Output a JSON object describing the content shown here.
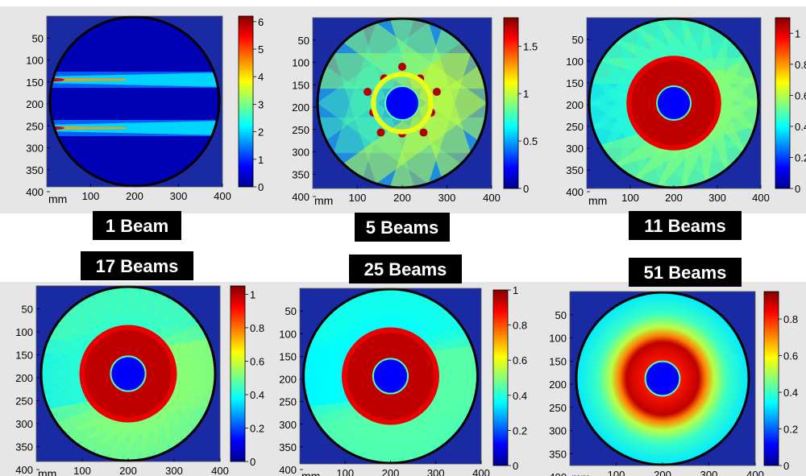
{
  "chart_data": [
    {
      "type": "heatmap",
      "label": "1 Beam",
      "beams": 1,
      "x_unit": "mm",
      "xticks": [
        100,
        200,
        300,
        400
      ],
      "yticks": [
        50,
        100,
        150,
        200,
        250,
        300,
        350,
        400
      ],
      "xlim": [
        0,
        400
      ],
      "ylim": [
        400,
        0
      ],
      "colorbar": {
        "min": 0,
        "max": 6.2,
        "ticks": [
          "0",
          "1",
          "2",
          "3",
          "4",
          "5",
          "6"
        ],
        "tick_values": [
          0,
          1,
          2,
          3,
          4,
          5,
          6
        ]
      },
      "peak": 6.2,
      "beam_rows_mm": [
        145,
        255
      ]
    },
    {
      "type": "heatmap",
      "label": "5 Beams",
      "beams": 5,
      "x_unit": "mm",
      "xticks": [
        100,
        200,
        300,
        400
      ],
      "yticks": [
        50,
        100,
        150,
        200,
        250,
        300,
        350,
        400
      ],
      "xlim": [
        0,
        400
      ],
      "ylim": [
        400,
        0
      ],
      "colorbar": {
        "min": 0,
        "max": 1.8,
        "ticks": [
          "0",
          "0.5",
          "1",
          "1.5"
        ],
        "tick_values": [
          0,
          0.5,
          1,
          1.5
        ]
      },
      "peak": 1.8
    },
    {
      "type": "heatmap",
      "label": "11 Beams",
      "beams": 11,
      "x_unit": "mm",
      "xticks": [
        100,
        200,
        300,
        400
      ],
      "yticks": [
        50,
        100,
        150,
        200,
        250,
        300,
        350,
        400
      ],
      "xlim": [
        0,
        400
      ],
      "ylim": [
        400,
        0
      ],
      "colorbar": {
        "min": 0,
        "max": 1.1,
        "ticks": [
          "0",
          "0.2",
          "0.4",
          "0.6",
          "0.8",
          "1"
        ],
        "tick_values": [
          0,
          0.2,
          0.4,
          0.6,
          0.8,
          1
        ]
      },
      "peak": 1.1
    },
    {
      "type": "heatmap",
      "label": "17 Beams",
      "beams": 17,
      "x_unit": "mm",
      "xticks": [
        100,
        200,
        300,
        400
      ],
      "yticks": [
        50,
        100,
        150,
        200,
        250,
        300,
        350,
        400
      ],
      "xlim": [
        0,
        400
      ],
      "ylim": [
        400,
        0
      ],
      "colorbar": {
        "min": 0,
        "max": 1.05,
        "ticks": [
          "0",
          "0.2",
          "0.4",
          "0.6",
          "0.8",
          "1"
        ],
        "tick_values": [
          0,
          0.2,
          0.4,
          0.6,
          0.8,
          1
        ]
      },
      "peak": 1.05
    },
    {
      "type": "heatmap",
      "label": "25 Beams",
      "beams": 25,
      "x_unit": "mm",
      "xticks": [
        100,
        200,
        300,
        400
      ],
      "yticks": [
        50,
        100,
        150,
        200,
        250,
        300,
        350,
        400
      ],
      "xlim": [
        0,
        400
      ],
      "ylim": [
        400,
        0
      ],
      "colorbar": {
        "min": 0,
        "max": 1.0,
        "ticks": [
          "0",
          "0.2",
          "0.4",
          "0.6",
          "0.8",
          "1"
        ],
        "tick_values": [
          0,
          0.2,
          0.4,
          0.6,
          0.8,
          1
        ]
      },
      "peak": 1.0
    },
    {
      "type": "heatmap",
      "label": "51 Beams",
      "beams": 51,
      "x_unit": "mm",
      "xticks": [
        100,
        200,
        300,
        400
      ],
      "yticks": [
        50,
        100,
        150,
        200,
        250,
        300,
        350,
        400
      ],
      "xlim": [
        0,
        400
      ],
      "ylim": [
        400,
        0
      ],
      "colorbar": {
        "min": 0,
        "max": 0.95,
        "ticks": [
          "0",
          "0.2",
          "0.4",
          "0.6",
          "0.8"
        ],
        "tick_values": [
          0,
          0.2,
          0.4,
          0.6,
          0.8
        ]
      },
      "peak": 0.95
    }
  ],
  "colors": {
    "background": "#ffffff",
    "panel": "#e6e6e6",
    "outside": "#1a2aa3",
    "label_bg": "#000000",
    "label_text": "#ffffff"
  }
}
